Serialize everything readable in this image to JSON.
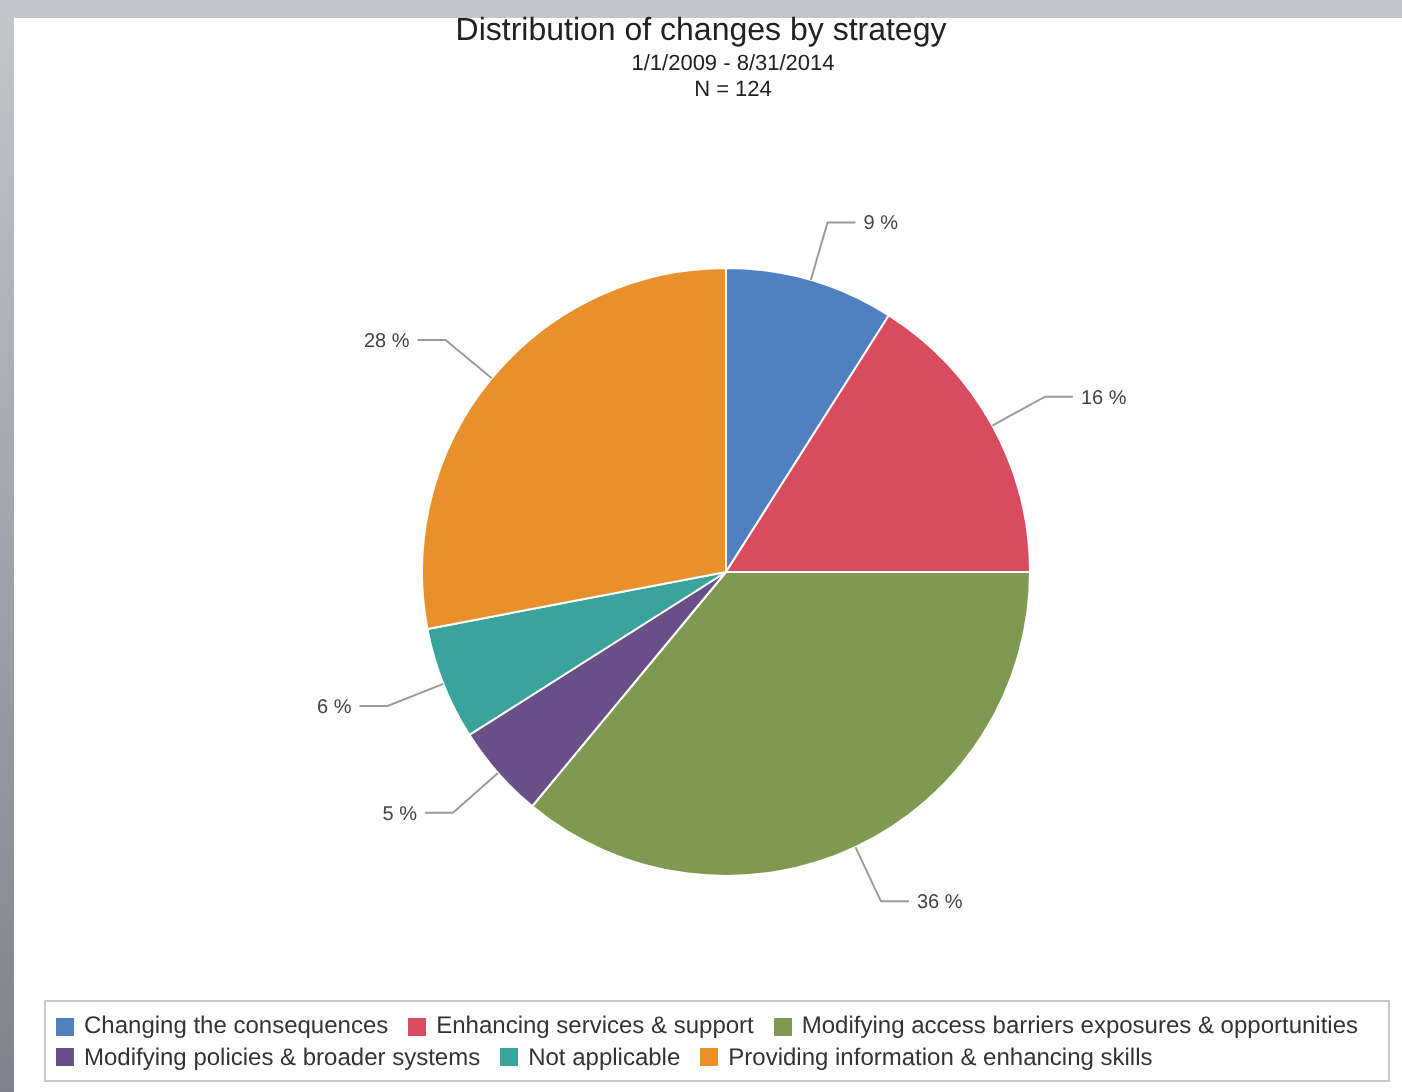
{
  "chart_data": {
    "type": "pie",
    "title": "Distribution of changes by strategy",
    "subtitle": "1/1/2009 - 8/31/2014",
    "annotations": [
      "N = 124"
    ],
    "categories": [
      "Changing the consequences",
      "Enhancing services & support",
      "Modifying access barriers exposures & opportunities",
      "Modifying policies & broader systems",
      "Not applicable",
      "Providing information & enhancing skills"
    ],
    "values": [
      9,
      16,
      36,
      5,
      6,
      28
    ],
    "value_labels": [
      "9 %",
      "16 %",
      "36 %",
      "5 %",
      "6 %",
      "28 %"
    ],
    "colors": [
      "#5080c0",
      "#d94c60",
      "#7f9a50",
      "#684f88",
      "#3aa39b",
      "#e8902c"
    ],
    "legend": "bottom"
  }
}
